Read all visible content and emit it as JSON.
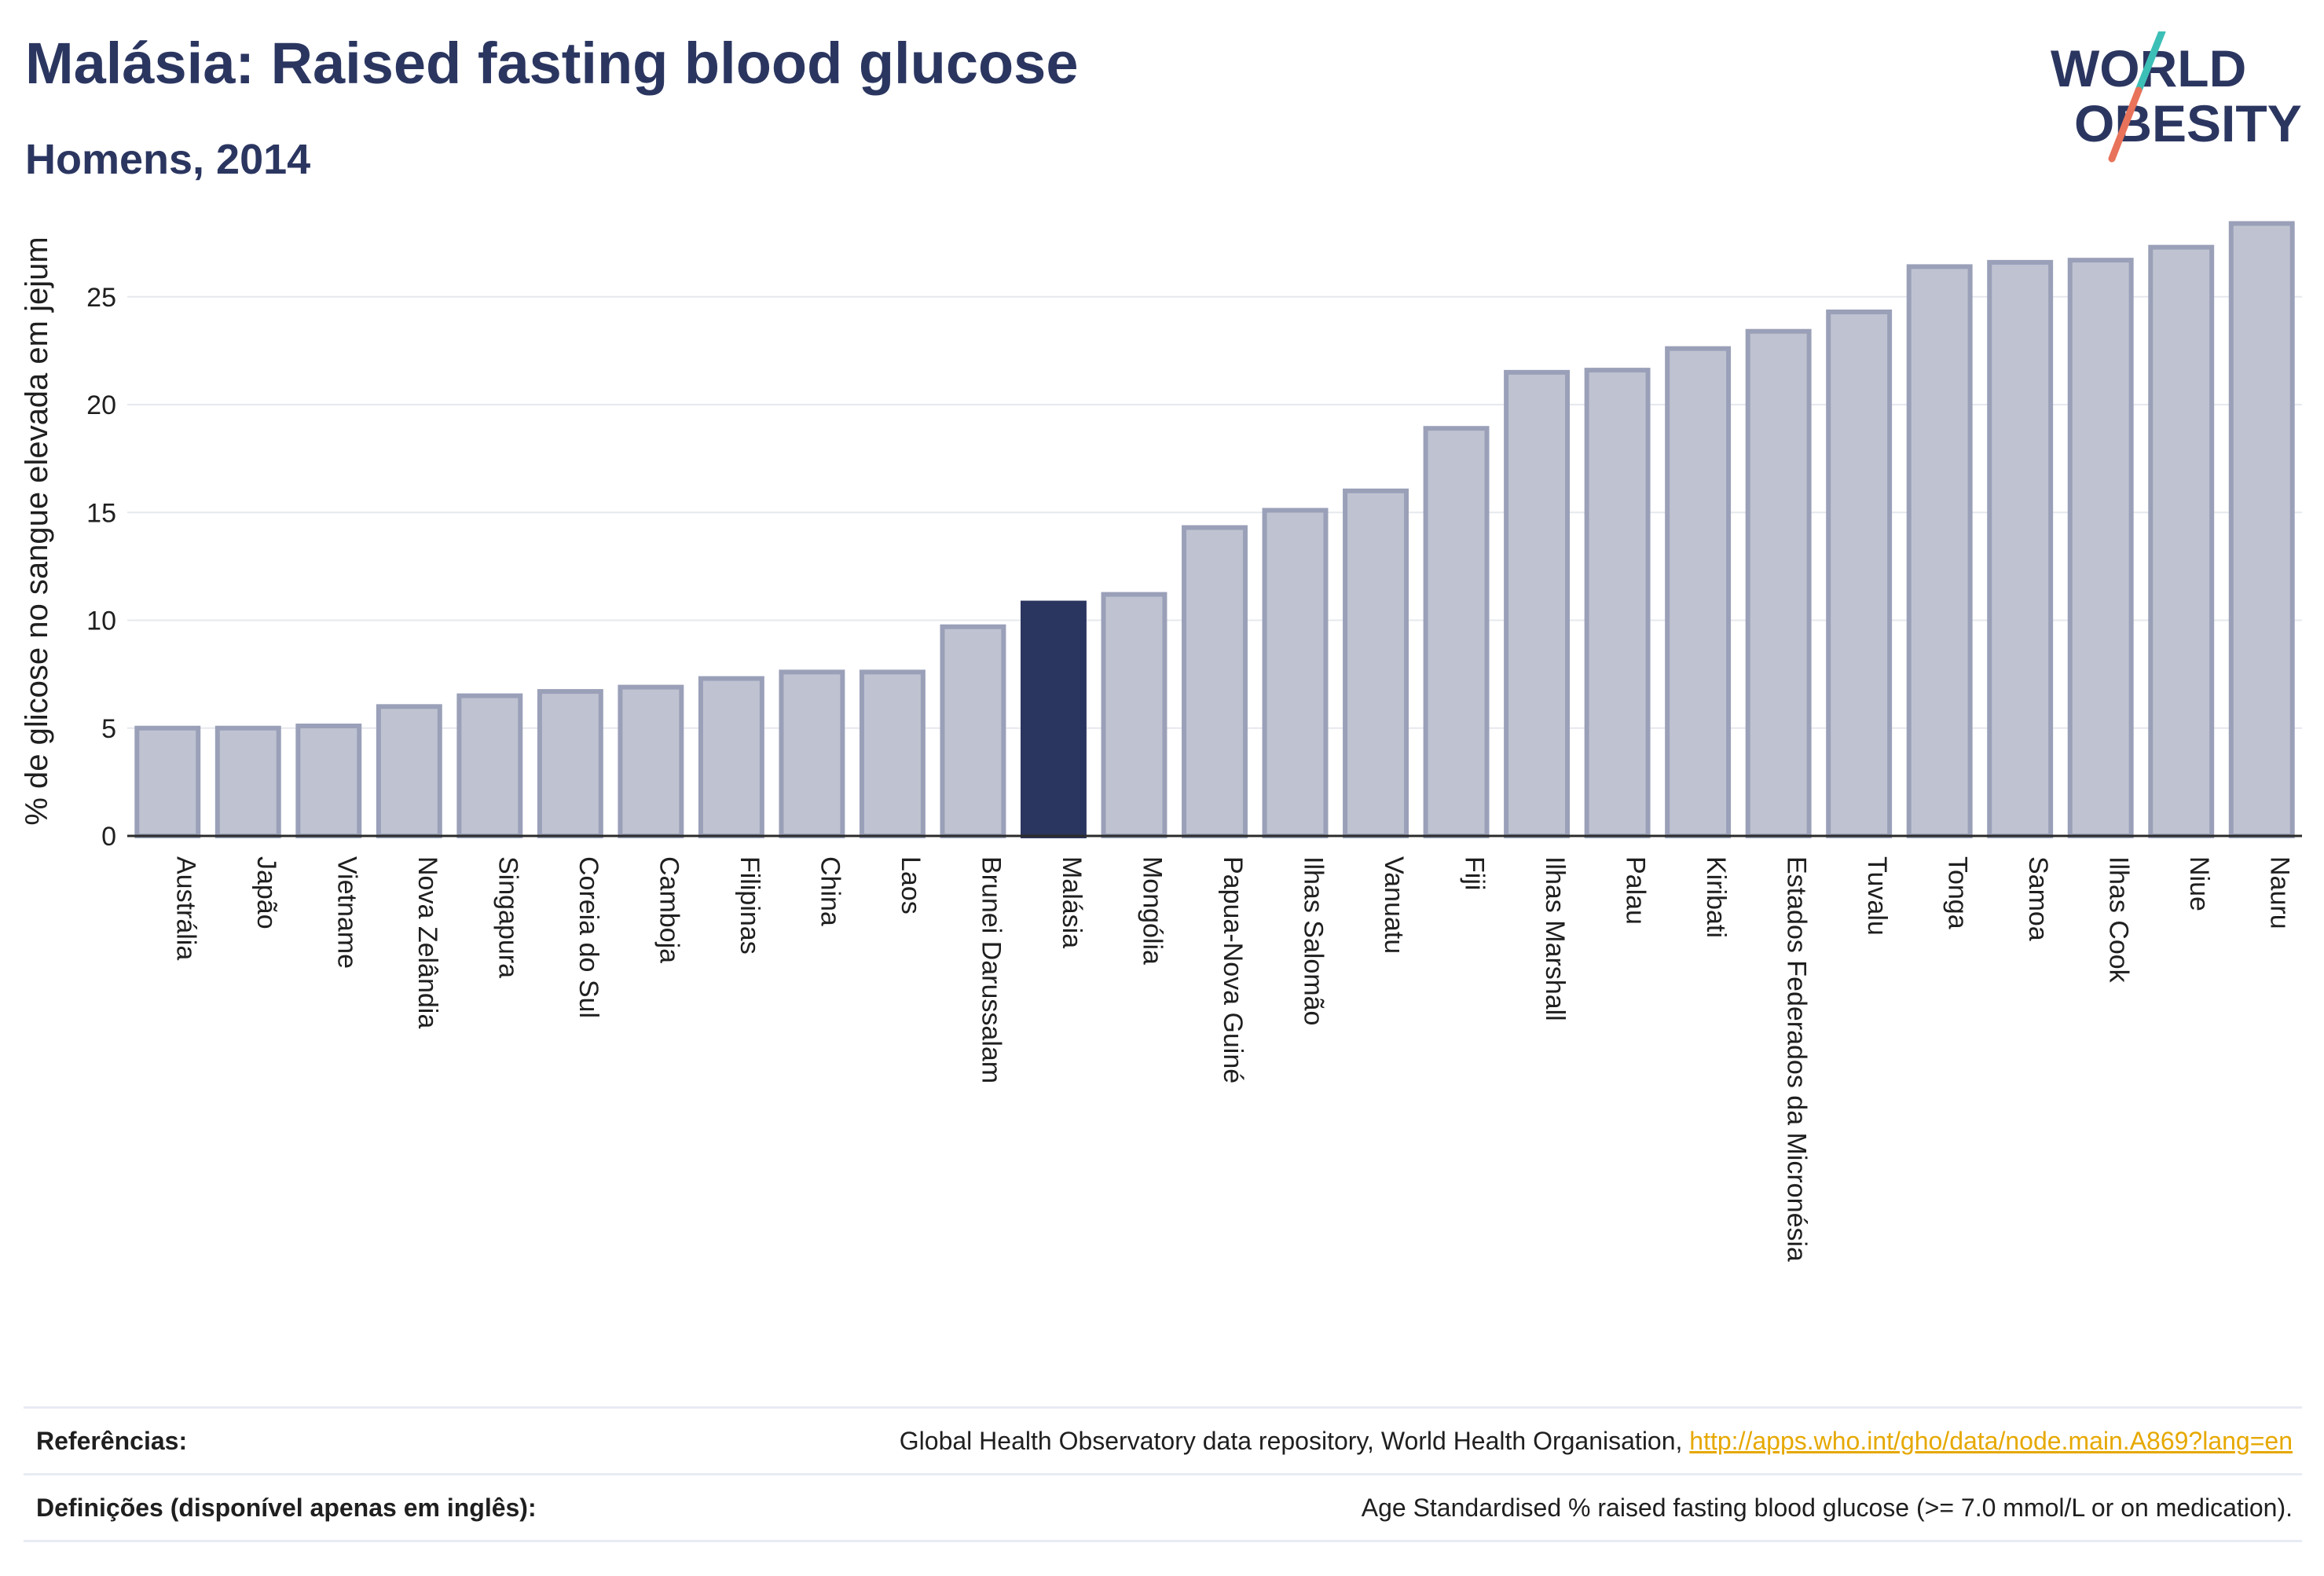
{
  "header": {
    "title": "Malásia: Raised fasting blood glucose",
    "subtitle": "Homens, 2014"
  },
  "logo": {
    "line1": "WORLD",
    "line2": "OBESITY",
    "slash_colors": [
      "#3cbfb6",
      "#e8735a"
    ]
  },
  "colors": {
    "bar_fill": "#bfc3d1",
    "bar_stroke": "#9aa0b8",
    "highlight_fill": "#2b3660",
    "title": "#2b3660",
    "link": "#e6a800"
  },
  "chart_data": {
    "type": "bar",
    "highlight": "Malásia",
    "ylabel": "% de glicose no sangue elevada em jejum",
    "ylim": [
      0,
      29
    ],
    "yticks": [
      0,
      5,
      10,
      15,
      20,
      25
    ],
    "grid": true,
    "categories": [
      "Austrália",
      "Japão",
      "Vietname",
      "Nova Zelândia",
      "Singapura",
      "Coreia do Sul",
      "Camboja",
      "Filipinas",
      "China",
      "Laos",
      "Brunei Darussalam",
      "Malásia",
      "Mongólia",
      "Papua-Nova Guiné",
      "Ilhas Salomão",
      "Vanuatu",
      "Fiji",
      "Ilhas Marshall",
      "Palau",
      "Kiribati",
      "Estados Federados da Micronésia",
      "Tuvalu",
      "Tonga",
      "Samoa",
      "Ilhas Cook",
      "Niue",
      "Nauru"
    ],
    "values": [
      5.0,
      5.0,
      5.1,
      6.0,
      6.5,
      6.7,
      6.9,
      7.3,
      7.6,
      7.6,
      9.7,
      10.8,
      11.2,
      14.3,
      15.1,
      16.0,
      18.9,
      21.5,
      21.6,
      22.6,
      23.4,
      24.3,
      26.4,
      26.6,
      26.7,
      27.3,
      28.4
    ]
  },
  "footer": {
    "references_label": "Referências:",
    "references_text": "Global Health Observatory data repository, World Health Organisation,",
    "references_link": "http://apps.who.int/gho/data/node.main.A869?lang=en",
    "definitions_label": "Definições (disponível apenas em inglês):",
    "definitions_text": "Age Standardised % raised fasting blood glucose (>= 7.0 mmol/L or on medication)."
  }
}
